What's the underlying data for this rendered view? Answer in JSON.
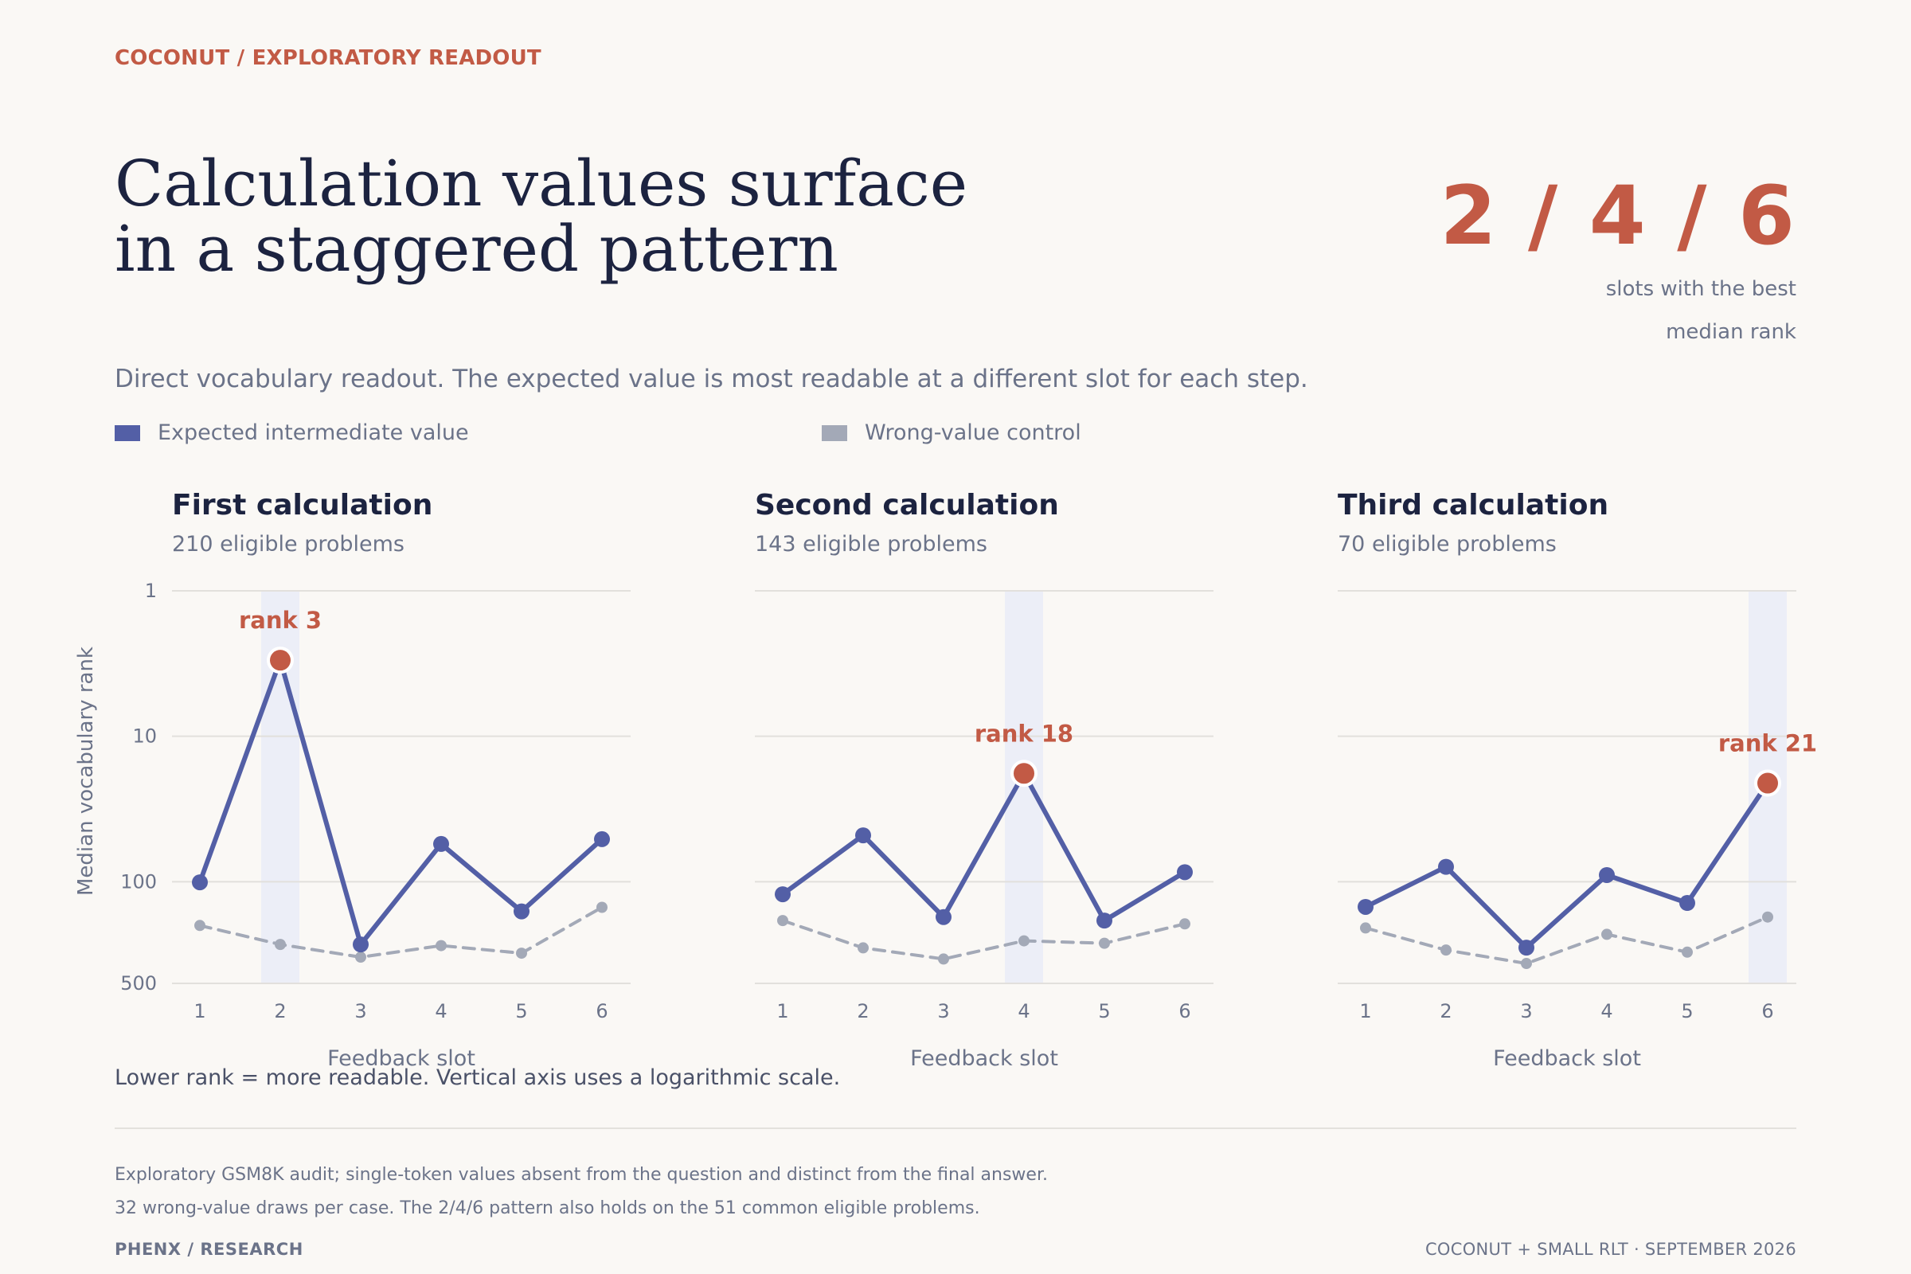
{
  "header": {
    "kicker": "COCONUT / EXPLORATORY READOUT",
    "title_line1": "Calculation values surface",
    "title_line2": "in a staggered pattern",
    "big_stat": "2 / 4 / 6",
    "stat_note_line1": "slots with the best",
    "stat_note_line2": "median rank",
    "subtitle": "Direct vocabulary readout. The expected value is most readable at a different slot for each step."
  },
  "legend": {
    "expected": "Expected intermediate value",
    "control": "Wrong-value control"
  },
  "colors": {
    "expected": "#535fa6",
    "control": "#a3a9b7",
    "accent": "#c25a45",
    "highlight_band": "#eceef7"
  },
  "chart_data": [
    {
      "type": "line",
      "title": "First calculation",
      "subtitle": "210 eligible problems",
      "xlabel": "Feedback slot",
      "ylabel": "Median vocabulary rank",
      "y_scale": "log",
      "y_inverted": true,
      "ylim": [
        1,
        500
      ],
      "yticks": [
        1,
        10,
        100,
        500
      ],
      "x": [
        1,
        2,
        3,
        4,
        5,
        6
      ],
      "series": [
        {
          "name": "Expected intermediate value",
          "values": [
            101,
            3,
            270,
            55,
            160,
            51
          ]
        },
        {
          "name": "Wrong-value control",
          "values": [
            200,
            270,
            330,
            275,
            310,
            150
          ]
        }
      ],
      "best_slot": 2,
      "annotation": "rank 3"
    },
    {
      "type": "line",
      "title": "Second calculation",
      "subtitle": "143 eligible problems",
      "xlabel": "Feedback slot",
      "y_scale": "log",
      "y_inverted": true,
      "ylim": [
        1,
        500
      ],
      "x": [
        1,
        2,
        3,
        4,
        5,
        6
      ],
      "series": [
        {
          "name": "Expected intermediate value",
          "values": [
            122,
            48,
            175,
            18,
            185,
            86
          ]
        },
        {
          "name": "Wrong-value control",
          "values": [
            185,
            285,
            340,
            255,
            265,
            195
          ]
        }
      ],
      "best_slot": 4,
      "annotation": "rank 18"
    },
    {
      "type": "line",
      "title": "Third calculation",
      "subtitle": "70 eligible problems",
      "xlabel": "Feedback slot",
      "y_scale": "log",
      "y_inverted": true,
      "ylim": [
        1,
        500
      ],
      "x": [
        1,
        2,
        3,
        4,
        5,
        6
      ],
      "series": [
        {
          "name": "Expected intermediate value",
          "values": [
            149,
            79,
            284,
            90,
            140,
            21
          ]
        },
        {
          "name": "Wrong-value control",
          "values": [
            208,
            295,
            365,
            230,
            305,
            175
          ]
        }
      ],
      "best_slot": 6,
      "annotation": "rank 21"
    }
  ],
  "notes": {
    "scale_note": "Lower rank = more readable. Vertical axis uses a logarithmic scale.",
    "footnote1": "Exploratory GSM8K audit; single-token values absent from the question and distinct from the final answer.",
    "footnote2": "32 wrong-value draws per case. The 2/4/6 pattern also holds on the 51 common eligible problems."
  },
  "footer": {
    "brand": "PHENX / RESEARCH",
    "credit": "COCONUT + SMALL RLT · SEPTEMBER 2026"
  }
}
